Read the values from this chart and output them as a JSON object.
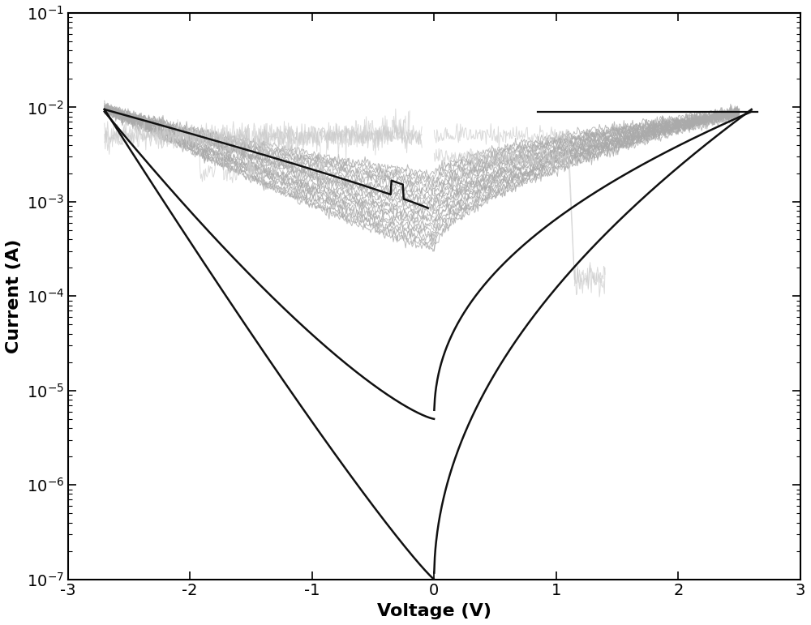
{
  "xlabel": "Voltage (V)",
  "ylabel": "Current (A)",
  "xlim": [
    -3,
    3
  ],
  "ylim_log": [
    -7,
    -1
  ],
  "xlabel_fontsize": 16,
  "ylabel_fontsize": 16,
  "tick_fontsize": 14,
  "background_color": "#ffffff",
  "line_color_dark": "#111111",
  "line_color_gray": "#aaaaaa",
  "line_color_lightgray": "#cccccc"
}
